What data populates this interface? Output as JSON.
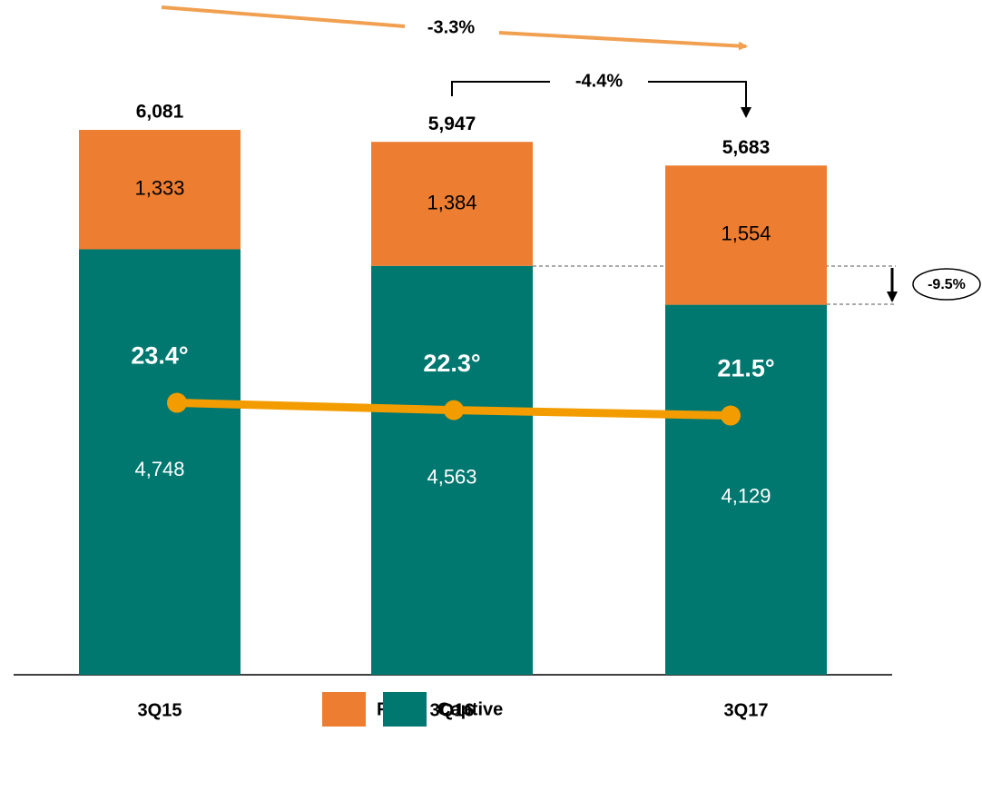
{
  "chart_data": {
    "type": "bar",
    "stacked": true,
    "categories": [
      "3Q15",
      "3Q16",
      "3Q17"
    ],
    "series": [
      {
        "name": "Captive",
        "color": "#00776f",
        "values": [
          4748,
          4563,
          4129
        ],
        "value_labels": [
          "4,748",
          "4,563",
          "4,129"
        ]
      },
      {
        "name": "Free",
        "color": "#ed7d31",
        "values": [
          1333,
          1384,
          1554
        ],
        "value_labels": [
          "1,333",
          "1,384",
          "1,554"
        ]
      }
    ],
    "totals": [
      6081,
      5947,
      5683
    ],
    "total_labels": [
      "6,081",
      "5,947",
      "5,683"
    ],
    "line": {
      "type": "line",
      "color": "#f39c00",
      "values": [
        23.4,
        22.3,
        21.5
      ],
      "value_labels": [
        "23.4°",
        "22.3°",
        "21.5°"
      ]
    },
    "legend": [
      "Free",
      "Captive"
    ],
    "annotations": [
      "-3.3%",
      "-4.4%",
      "-9.5%"
    ]
  }
}
